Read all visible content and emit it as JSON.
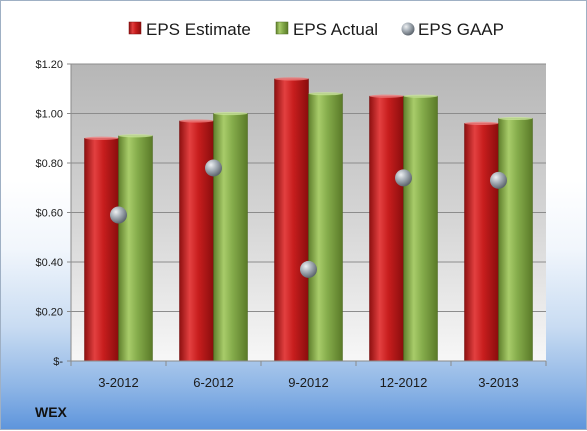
{
  "chart_data": {
    "type": "bar",
    "categories": [
      "3-2012",
      "6-2012",
      "9-2012",
      "12-2012",
      "3-2013"
    ],
    "series": [
      {
        "name": "EPS Estimate",
        "kind": "bar",
        "color": "#d42a2a",
        "values": [
          0.9,
          0.97,
          1.14,
          1.07,
          0.96
        ]
      },
      {
        "name": "EPS Actual",
        "kind": "bar",
        "color": "#8db353",
        "values": [
          0.91,
          1.0,
          1.08,
          1.07,
          0.98
        ]
      },
      {
        "name": "EPS GAAP",
        "kind": "marker",
        "color": "#9aa4ae",
        "values": [
          0.59,
          0.78,
          0.37,
          0.74,
          0.73
        ]
      }
    ],
    "yticks": [
      {
        "value": 0,
        "label": "$-"
      },
      {
        "value": 0.2,
        "label": "$0.20"
      },
      {
        "value": 0.4,
        "label": "$0.40"
      },
      {
        "value": 0.6,
        "label": "$0.60"
      },
      {
        "value": 0.8,
        "label": "$0.80"
      },
      {
        "value": 1.0,
        "label": "$1.00"
      },
      {
        "value": 1.2,
        "label": "$1.20"
      }
    ],
    "ylim": [
      0,
      1.2
    ],
    "grid": true,
    "legend_position": "top"
  },
  "ticker": "WEX"
}
